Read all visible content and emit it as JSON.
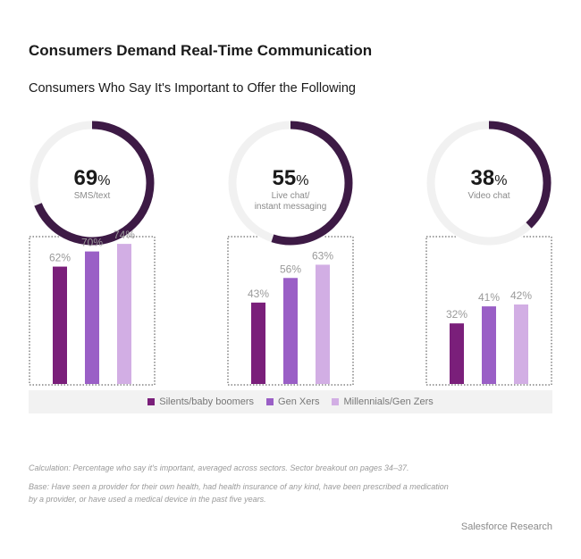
{
  "title": "Consumers Demand Real-Time Communication",
  "subtitle": "Consumers Who Say It's Important to Offer the Following",
  "legend": [
    {
      "label": "Silents/baby boomers",
      "color": "#7a1f7a"
    },
    {
      "label": "Gen Xers",
      "color": "#9a5fc6"
    },
    {
      "label": "Millennials/Gen Zers",
      "color": "#d2aee4"
    }
  ],
  "colors": {
    "ring": "#3d1a45",
    "track": "#f1f1f1"
  },
  "chart_data": {
    "type": "bar",
    "panels": [
      {
        "value": 69,
        "label_lines": [
          "SMS/text"
        ],
        "series_values": [
          62,
          70,
          74
        ]
      },
      {
        "value": 55,
        "label_lines": [
          "Live chat/",
          "instant messaging"
        ],
        "series_values": [
          43,
          56,
          63
        ]
      },
      {
        "value": 38,
        "label_lines": [
          "Video chat"
        ],
        "series_values": [
          32,
          41,
          42
        ]
      }
    ],
    "series": [
      "Silents/baby boomers",
      "Gen Xers",
      "Millennials/Gen Zers"
    ],
    "unit": "%"
  },
  "notes": {
    "calculation": "Calculation: Percentage who say it's important, averaged across sectors. Sector breakout on pages 34–37.",
    "base": "Base: Have seen a provider for their own health, had health insurance of any kind, have been prescribed a medication by a provider, or have used a medical device in the past five years."
  },
  "source": "Salesforce Research"
}
